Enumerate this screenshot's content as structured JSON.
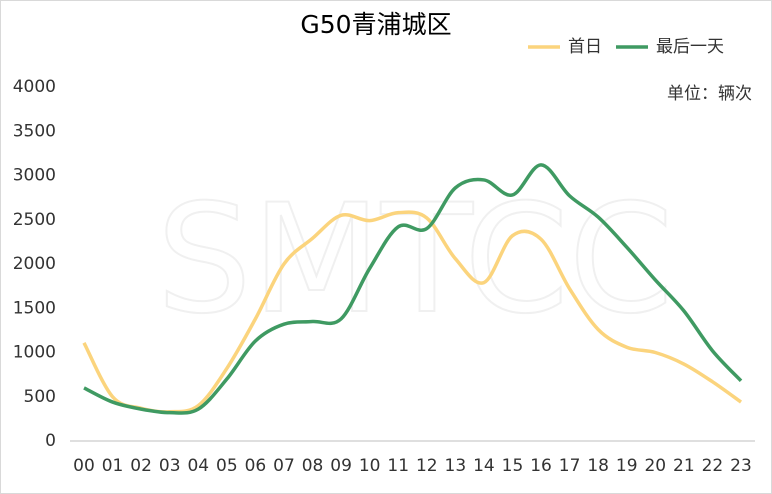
{
  "chart_data": {
    "type": "line",
    "title": "G50青浦城区",
    "unit": "单位：辆次",
    "watermark": "SMTCC",
    "categories": [
      "00",
      "01",
      "02",
      "03",
      "04",
      "05",
      "06",
      "07",
      "08",
      "09",
      "10",
      "11",
      "12",
      "13",
      "14",
      "15",
      "16",
      "17",
      "18",
      "19",
      "20",
      "21",
      "22",
      "23"
    ],
    "series": [
      {
        "name": "首日",
        "color": "#fbd47d",
        "values": [
          1110,
          500,
          370,
          330,
          400,
          820,
          1380,
          2000,
          2290,
          2550,
          2490,
          2580,
          2520,
          2060,
          1790,
          2320,
          2280,
          1720,
          1260,
          1060,
          1000,
          870,
          670,
          440
        ]
      },
      {
        "name": "最后一天",
        "color": "#3f9a62",
        "values": [
          600,
          440,
          360,
          320,
          360,
          700,
          1130,
          1320,
          1350,
          1380,
          1950,
          2420,
          2400,
          2860,
          2950,
          2780,
          3120,
          2770,
          2530,
          2190,
          1820,
          1470,
          1020,
          680
        ]
      }
    ],
    "ylim": [
      0,
      4000
    ],
    "yticks": [
      0,
      500,
      1000,
      1500,
      2000,
      2500,
      3000,
      3500,
      4000
    ],
    "legend": "top-right"
  }
}
